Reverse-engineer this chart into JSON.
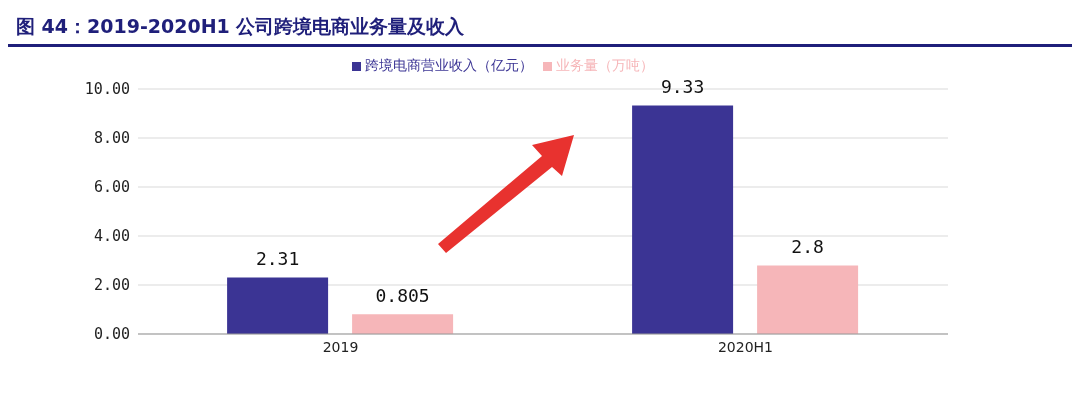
{
  "chart_data": {
    "type": "bar",
    "title": "图 44：2019-2020H1 公司跨境电商业务量及收入",
    "categories": [
      "2019",
      "2020H1"
    ],
    "series": [
      {
        "name": "跨境电商营业收入（亿元）",
        "color": "#3b3494",
        "values": [
          2.31,
          9.33
        ]
      },
      {
        "name": "业务量（万吨）",
        "color": "#f6b6b9",
        "values": [
          0.805,
          2.8
        ]
      }
    ],
    "ylim": [
      0,
      10
    ],
    "yticks": [
      {
        "value": 0,
        "label": "0.00"
      },
      {
        "value": 2,
        "label": "2.00"
      },
      {
        "value": 4,
        "label": "4.00"
      },
      {
        "value": 6,
        "label": "6.00"
      },
      {
        "value": 8,
        "label": "8.00"
      },
      {
        "value": 10,
        "label": "10.00"
      }
    ],
    "grid": "y",
    "legend": "top",
    "data_labels": true
  }
}
